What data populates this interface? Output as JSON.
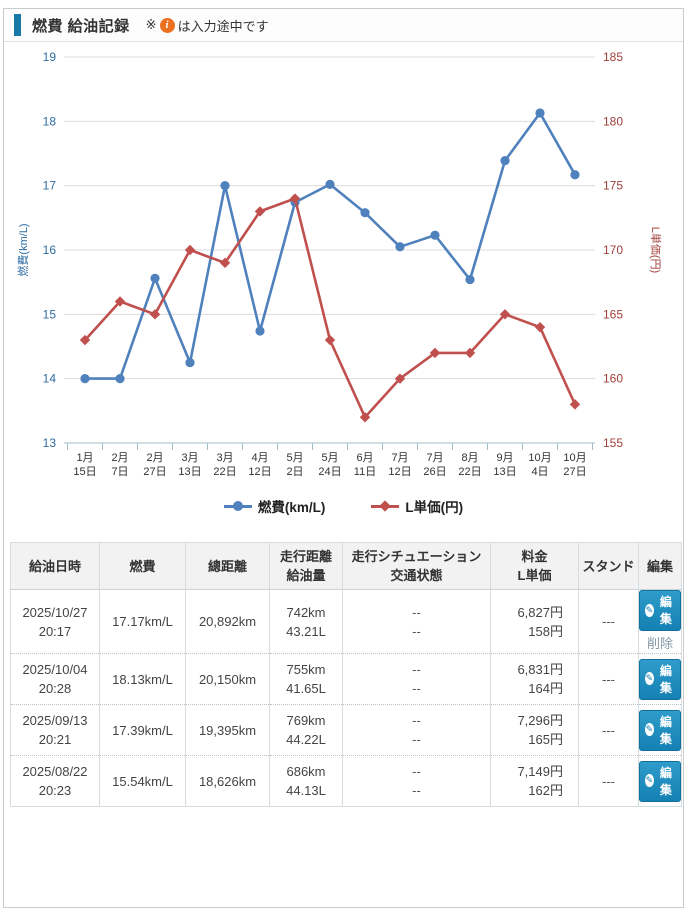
{
  "header": {
    "title": "燃費 給油記録",
    "note_mark": "※",
    "info_icon": "i",
    "note_text": "は入力途中です"
  },
  "chart_data": {
    "type": "line",
    "title": "",
    "grid": true,
    "legend_position": "bottom",
    "x_labels": [
      [
        "1月",
        "15日"
      ],
      [
        "2月",
        "7日"
      ],
      [
        "2月",
        "27日"
      ],
      [
        "3月",
        "13日"
      ],
      [
        "3月",
        "22日"
      ],
      [
        "4月",
        "12日"
      ],
      [
        "5月",
        "2日"
      ],
      [
        "5月",
        "24日"
      ],
      [
        "6月",
        "11日"
      ],
      [
        "7月",
        "12日"
      ],
      [
        "7月",
        "26日"
      ],
      [
        "8月",
        "22日"
      ],
      [
        "9月",
        "13日"
      ],
      [
        "10月",
        "4日"
      ],
      [
        "10月",
        "27日"
      ]
    ],
    "left_axis": {
      "title": "燃費(km/L)",
      "min": 13,
      "max": 19,
      "step": 1,
      "ticks": [
        19,
        18,
        17,
        16,
        15,
        14,
        13
      ],
      "color": "#2e6da4"
    },
    "right_axis": {
      "title": "L単価(円)",
      "min": 155,
      "max": 185,
      "step": 5,
      "ticks": [
        185,
        180,
        175,
        170,
        165,
        160,
        155
      ],
      "color": "#a2403c"
    },
    "series": [
      {
        "name": "燃費(km/L)",
        "axis": "left",
        "color": "#4f81bd",
        "marker": "circle",
        "values": [
          14.0,
          14.0,
          15.56,
          14.25,
          17.0,
          14.74,
          16.74,
          17.02,
          16.58,
          16.05,
          16.23,
          15.54,
          17.39,
          18.13,
          17.17
        ]
      },
      {
        "name": "L単価(円)",
        "axis": "right",
        "color": "#c0504d",
        "marker": "diamond",
        "values": [
          163,
          166,
          165,
          170,
          169,
          173,
          174,
          163,
          157,
          160,
          162,
          162,
          165,
          164,
          158
        ]
      }
    ]
  },
  "table": {
    "headers": [
      [
        "給油日時"
      ],
      [
        "燃費"
      ],
      [
        "總距離"
      ],
      [
        "走行距離",
        "給油量"
      ],
      [
        "走行シチュエーション",
        "交通状態"
      ],
      [
        "料金",
        "L単価"
      ],
      [
        "スタンド"
      ],
      [
        "編集"
      ]
    ],
    "edit_label": "編集",
    "delete_label": "削除",
    "rows": [
      {
        "date": "2025/10/27",
        "time": "20:17",
        "nenpi": "17.17km/L",
        "total_distance": "20,892km",
        "distance": "742km",
        "fuel": "43.21L",
        "situation": "--",
        "traffic": "--",
        "price": "6,827円",
        "unit_price": "158円",
        "stand": "---",
        "deletable": true
      },
      {
        "date": "2025/10/04",
        "time": "20:28",
        "nenpi": "18.13km/L",
        "total_distance": "20,150km",
        "distance": "755km",
        "fuel": "41.65L",
        "situation": "--",
        "traffic": "--",
        "price": "6,831円",
        "unit_price": "164円",
        "stand": "---",
        "deletable": false
      },
      {
        "date": "2025/09/13",
        "time": "20:21",
        "nenpi": "17.39km/L",
        "total_distance": "19,395km",
        "distance": "769km",
        "fuel": "44.22L",
        "situation": "--",
        "traffic": "--",
        "price": "7,296円",
        "unit_price": "165円",
        "stand": "---",
        "deletable": false
      },
      {
        "date": "2025/08/22",
        "time": "20:23",
        "nenpi": "15.54km/L",
        "total_distance": "18,626km",
        "distance": "686km",
        "fuel": "44.13L",
        "situation": "--",
        "traffic": "--",
        "price": "7,149円",
        "unit_price": "162円",
        "stand": "---",
        "deletable": false
      }
    ]
  }
}
